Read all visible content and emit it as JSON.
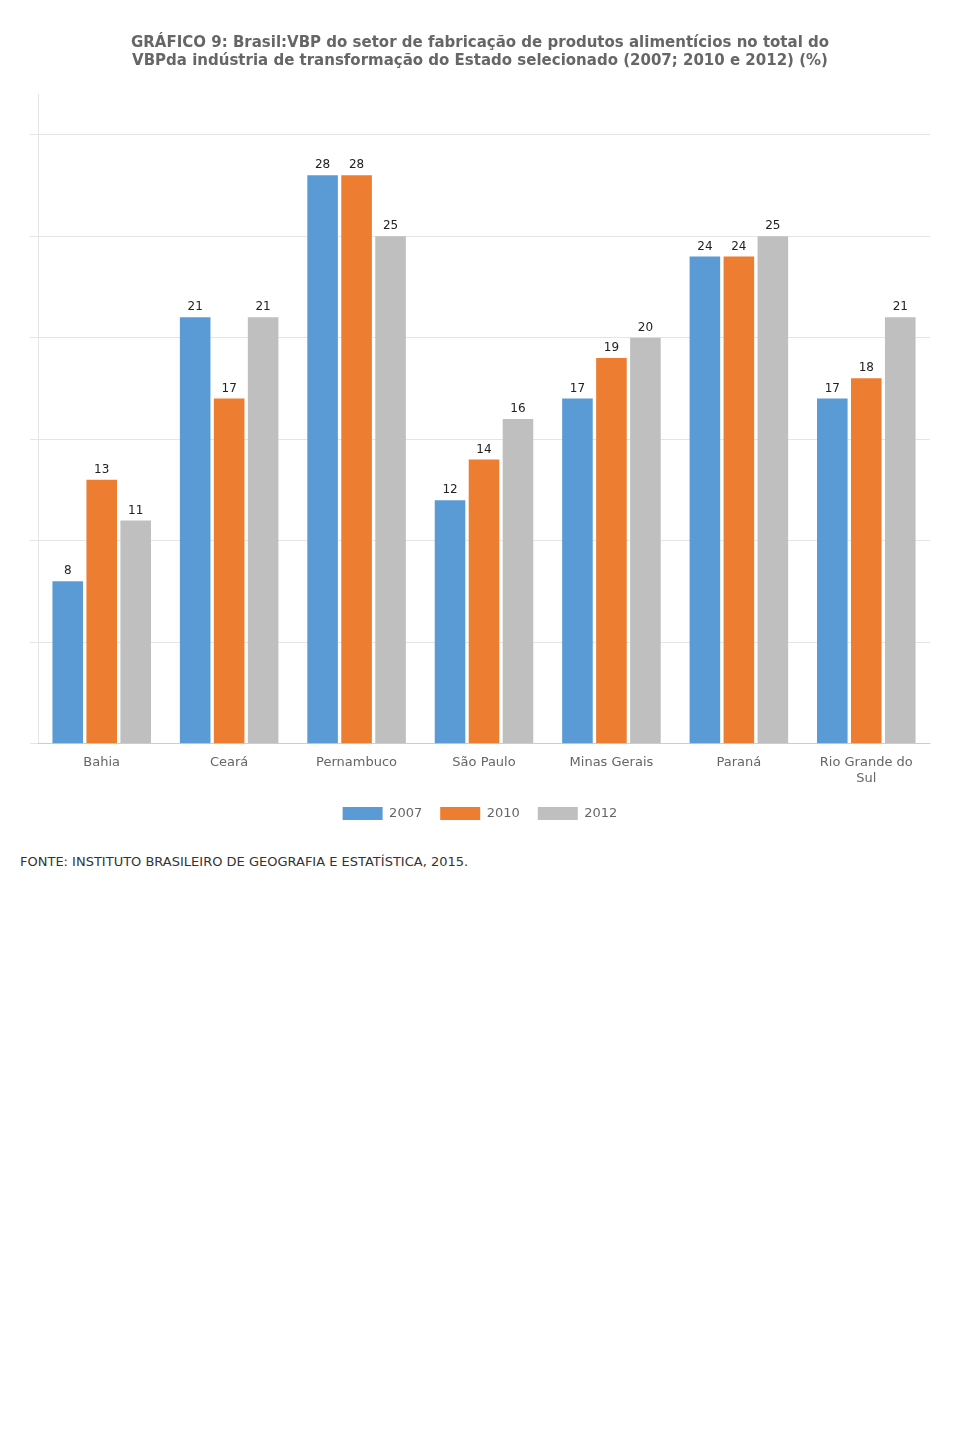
{
  "chart_data": {
    "type": "bar",
    "title": [
      "GRÁFICO 9: Brasil:VBP do setor de fabricação de produtos alimentícios no total do",
      "VBPda indústria de transformação do Estado selecionado (2007; 2010 e 2012) (%)"
    ],
    "categories": [
      "Bahia",
      "Ceará",
      "Pernambuco",
      "São Paulo",
      "Minas Gerais",
      "Paraná",
      "Rio Grande do\nSul"
    ],
    "series": [
      {
        "name": "2007",
        "color": "#5B9BD5",
        "values": [
          8,
          21,
          28,
          12,
          17,
          24,
          17
        ]
      },
      {
        "name": "2010",
        "color": "#ED7D31",
        "values": [
          13,
          17,
          28,
          14,
          19,
          24,
          18
        ]
      },
      {
        "name": "2012",
        "color": "#BFBFBF",
        "values": [
          11,
          21,
          25,
          16,
          20,
          25,
          21
        ]
      }
    ],
    "ylim": [
      0,
      32
    ],
    "yticks": [
      0,
      5,
      10,
      15,
      20,
      25,
      30
    ],
    "grid": true,
    "legend": "bottom",
    "data_labels": true,
    "tick_labels": "x",
    "annotations": [
      "FONTE: INSTITUTO BRASILEIRO DE GEOGRAFIA E ESTATÍSTICA, 2015."
    ]
  }
}
